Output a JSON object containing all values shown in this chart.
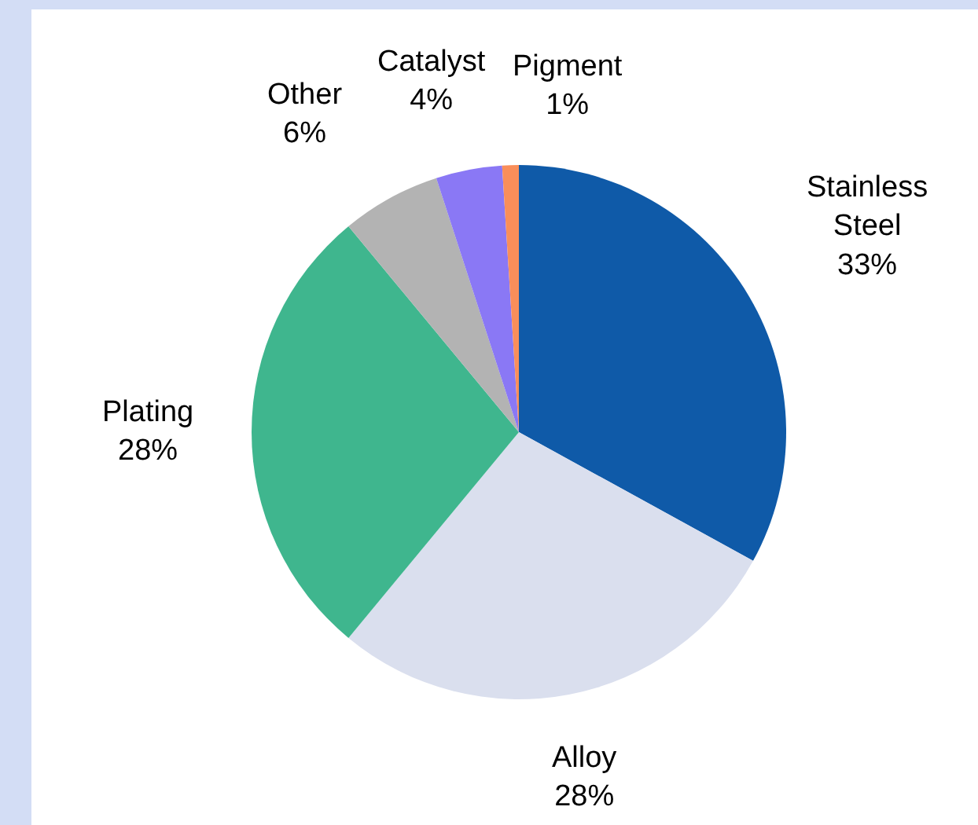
{
  "chart_data": {
    "type": "pie",
    "categories": [
      "Stainless Steel",
      "Alloy",
      "Plating",
      "Other",
      "Catalyst",
      "Pigment"
    ],
    "values": [
      33,
      28,
      28,
      6,
      4,
      1
    ],
    "value_labels": [
      "33%",
      "28%",
      "28%",
      "6%",
      "4%",
      "1%"
    ],
    "colors": [
      "#0f5aa8",
      "#dadfee",
      "#3fb68e",
      "#b3b3b3",
      "#8a78f5",
      "#f98e5a"
    ],
    "legend": false
  }
}
